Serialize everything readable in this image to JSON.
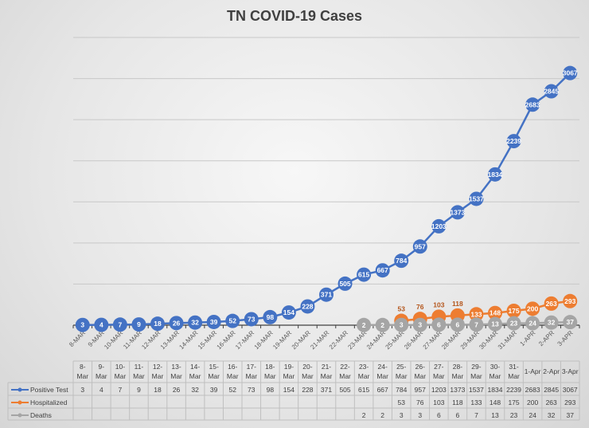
{
  "chart_data": {
    "type": "line",
    "title": "TN COVID-19 Cases",
    "axis_labels": [
      "8-MAR",
      "9-MAR",
      "10-MAR",
      "11-MAR",
      "12-MAR",
      "13-MAR",
      "14-MAR",
      "15-MAR",
      "16-MAR",
      "17-MAR",
      "18-MAR",
      "19-MAR",
      "20-MAR",
      "21-MAR",
      "22-MAR",
      "23-MAR",
      "24-MAR",
      "25-MAR",
      "26-MAR",
      "27-MAR",
      "28-MAR",
      "29-MAR",
      "30-MAR",
      "31-MAR",
      "1-APR",
      "2-APR",
      "3-APR"
    ],
    "categories": [
      "8-Mar",
      "9-Mar",
      "10-Mar",
      "11-Mar",
      "12-Mar",
      "13-Mar",
      "14-Mar",
      "15-Mar",
      "16-Mar",
      "17-Mar",
      "18-Mar",
      "19-Mar",
      "20-Mar",
      "21-Mar",
      "22-Mar",
      "23-Mar",
      "24-Mar",
      "25-Mar",
      "26-Mar",
      "27-Mar",
      "28-Mar",
      "29-Mar",
      "30-Mar",
      "31-Mar",
      "1-Apr",
      "2-Apr",
      "3-Apr"
    ],
    "ylim": [
      0,
      3500
    ],
    "y_gridlines": [
      500,
      1000,
      1500,
      2000,
      2500,
      3000,
      3500
    ],
    "grid": true,
    "legend": "data-table",
    "series": [
      {
        "name": "Positive Test",
        "color": "#4472c4",
        "values": [
          3,
          4,
          7,
          9,
          18,
          26,
          32,
          39,
          52,
          73,
          98,
          154,
          228,
          371,
          505,
          615,
          667,
          784,
          957,
          1203,
          1373,
          1537,
          1834,
          2239,
          2683,
          2845,
          3067
        ]
      },
      {
        "name": "Hospitalized",
        "color": "#ed7d31",
        "values": [
          null,
          null,
          null,
          null,
          null,
          null,
          null,
          null,
          null,
          null,
          null,
          null,
          null,
          null,
          null,
          null,
          null,
          53,
          76,
          103,
          118,
          133,
          148,
          175,
          200,
          263,
          293
        ]
      },
      {
        "name": "Deaths",
        "color": "#a5a5a5",
        "values": [
          null,
          null,
          null,
          null,
          null,
          null,
          null,
          null,
          null,
          null,
          null,
          null,
          null,
          null,
          null,
          2,
          2,
          3,
          3,
          6,
          6,
          7,
          13,
          23,
          24,
          32,
          37
        ]
      }
    ]
  }
}
